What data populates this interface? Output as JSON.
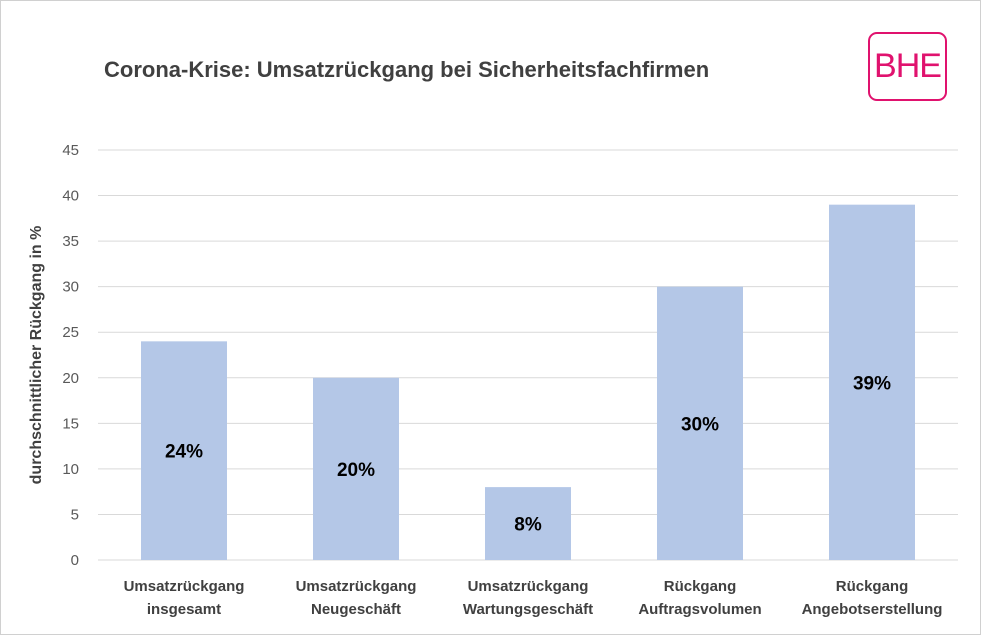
{
  "logo": {
    "text": "BHE",
    "color": "#e0126e"
  },
  "chart_data": {
    "type": "bar",
    "title": "Corona-Krise: Umsatzrückgang bei Sicherheitsfachfirmen",
    "ylabel": "durchschnittlicher Rückgang in %",
    "xlabel": "",
    "categories": [
      [
        "Umsatzrückgang",
        "insgesamt"
      ],
      [
        "Umsatzrückgang",
        "Neugeschäft"
      ],
      [
        "Umsatzrückgang",
        "Wartungsgeschäft"
      ],
      [
        "Rückgang",
        "Auftragsvolumen"
      ],
      [
        "Rückgang",
        "Angebotserstellung"
      ]
    ],
    "values": [
      24,
      20,
      8,
      30,
      39
    ],
    "data_labels": [
      "24%",
      "20%",
      "8%",
      "30%",
      "39%"
    ],
    "ylim": [
      0,
      45
    ],
    "yticks": [
      0,
      5,
      10,
      15,
      20,
      25,
      30,
      35,
      40,
      45
    ],
    "grid": true,
    "legend": "none",
    "bar_color": "#b4c7e7",
    "grid_color": "#d9d9d9"
  }
}
